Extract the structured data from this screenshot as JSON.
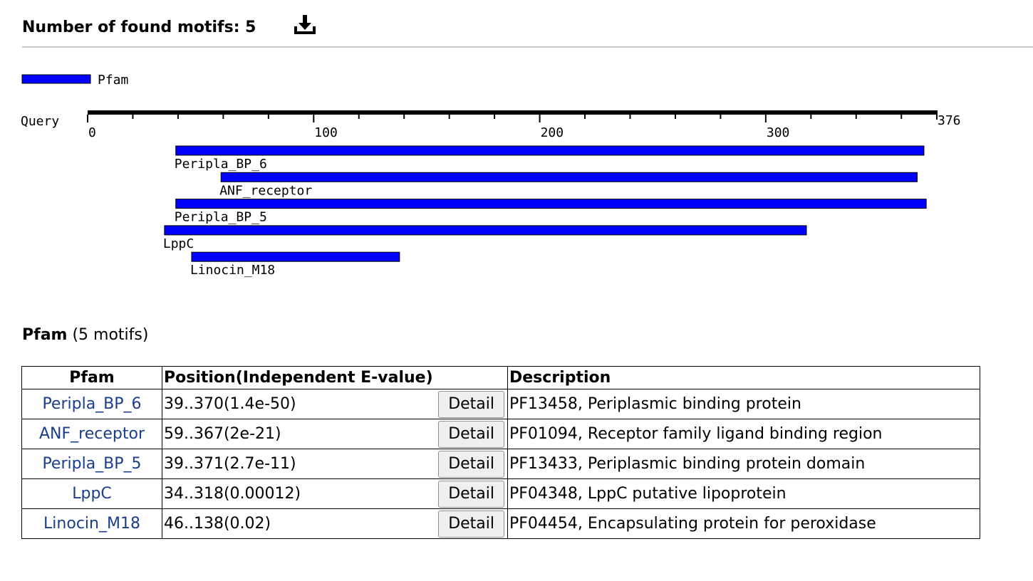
{
  "header": {
    "title": "Number of found motifs: 5",
    "download_icon": "download-icon"
  },
  "legend": {
    "label": "Pfam",
    "color": "#0000ff"
  },
  "ruler": {
    "label": "Query",
    "min": 0,
    "max": 376,
    "max_label": "376",
    "ticks": [
      "0",
      "100",
      "200",
      "300"
    ]
  },
  "motifs": [
    {
      "name": "Peripla_BP_6",
      "start": 39,
      "end": 370,
      "position": "39..370(1.4e-50)",
      "description": "PF13458, Periplasmic binding protein"
    },
    {
      "name": "ANF_receptor",
      "start": 59,
      "end": 367,
      "position": "59..367(2e-21)",
      "description": "PF01094, Receptor family ligand binding region"
    },
    {
      "name": "Peripla_BP_5",
      "start": 39,
      "end": 371,
      "position": "39..371(2.7e-11)",
      "description": "PF13433, Periplasmic binding protein domain"
    },
    {
      "name": "LppC",
      "start": 34,
      "end": 318,
      "position": "34..318(0.00012)",
      "description": "PF04348, LppC putative lipoprotein"
    },
    {
      "name": "Linocin_M18",
      "start": 46,
      "end": 138,
      "position": "46..138(0.02)",
      "description": "PF04454, Encapsulating protein for peroxidase"
    }
  ],
  "section": {
    "title": "Pfam",
    "count": "(5 motifs)"
  },
  "table": {
    "headers": [
      "Pfam",
      "Position(Independent E-value)",
      "Description"
    ],
    "detail_label": "Detail"
  },
  "colors": {
    "bar": "#0000ff",
    "link": "#1a3e8c"
  }
}
